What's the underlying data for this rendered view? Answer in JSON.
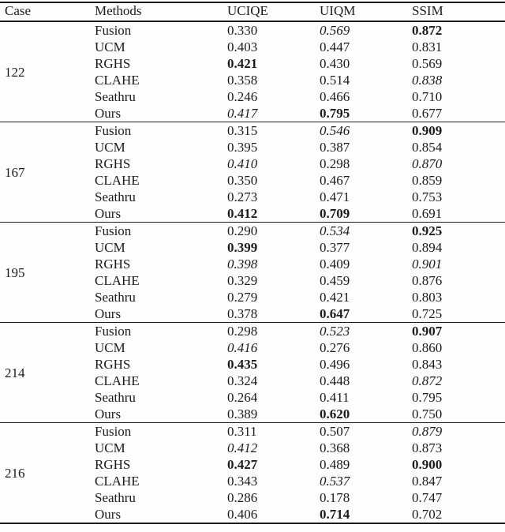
{
  "table": {
    "columns": [
      "Case",
      "Methods",
      "UCIQE",
      "UIQM",
      "SSIM"
    ],
    "groups": [
      {
        "case": "122",
        "rows": [
          {
            "method": "Fusion",
            "uciqe": {
              "v": "0.330",
              "s": "normal"
            },
            "uiqm": {
              "v": "0.569",
              "s": "italic"
            },
            "ssim": {
              "v": "0.872",
              "s": "bold"
            }
          },
          {
            "method": "UCM",
            "uciqe": {
              "v": "0.403",
              "s": "normal"
            },
            "uiqm": {
              "v": "0.447",
              "s": "normal"
            },
            "ssim": {
              "v": "0.831",
              "s": "normal"
            }
          },
          {
            "method": "RGHS",
            "uciqe": {
              "v": "0.421",
              "s": "bold"
            },
            "uiqm": {
              "v": "0.430",
              "s": "normal"
            },
            "ssim": {
              "v": "0.569",
              "s": "normal"
            }
          },
          {
            "method": "CLAHE",
            "uciqe": {
              "v": "0.358",
              "s": "normal"
            },
            "uiqm": {
              "v": "0.514",
              "s": "normal"
            },
            "ssim": {
              "v": "0.838",
              "s": "italic"
            }
          },
          {
            "method": "Seathru",
            "uciqe": {
              "v": "0.246",
              "s": "normal"
            },
            "uiqm": {
              "v": "0.466",
              "s": "normal"
            },
            "ssim": {
              "v": "0.710",
              "s": "normal"
            }
          },
          {
            "method": "Ours",
            "uciqe": {
              "v": "0.417",
              "s": "italic"
            },
            "uiqm": {
              "v": "0.795",
              "s": "bold"
            },
            "ssim": {
              "v": "0.677",
              "s": "normal"
            }
          }
        ]
      },
      {
        "case": "167",
        "rows": [
          {
            "method": "Fusion",
            "uciqe": {
              "v": "0.315",
              "s": "normal"
            },
            "uiqm": {
              "v": "0.546",
              "s": "italic"
            },
            "ssim": {
              "v": "0.909",
              "s": "bold"
            }
          },
          {
            "method": "UCM",
            "uciqe": {
              "v": "0.395",
              "s": "normal"
            },
            "uiqm": {
              "v": "0.387",
              "s": "normal"
            },
            "ssim": {
              "v": "0.854",
              "s": "normal"
            }
          },
          {
            "method": "RGHS",
            "uciqe": {
              "v": "0.410",
              "s": "italic"
            },
            "uiqm": {
              "v": "0.298",
              "s": "normal"
            },
            "ssim": {
              "v": "0.870",
              "s": "italic"
            }
          },
          {
            "method": "CLAHE",
            "uciqe": {
              "v": "0.350",
              "s": "normal"
            },
            "uiqm": {
              "v": "0.467",
              "s": "normal"
            },
            "ssim": {
              "v": "0.859",
              "s": "normal"
            }
          },
          {
            "method": "Seathru",
            "uciqe": {
              "v": "0.273",
              "s": "normal"
            },
            "uiqm": {
              "v": "0.471",
              "s": "normal"
            },
            "ssim": {
              "v": "0.753",
              "s": "normal"
            }
          },
          {
            "method": "Ours",
            "uciqe": {
              "v": "0.412",
              "s": "bold"
            },
            "uiqm": {
              "v": "0.709",
              "s": "bold"
            },
            "ssim": {
              "v": "0.691",
              "s": "normal"
            }
          }
        ]
      },
      {
        "case": "195",
        "rows": [
          {
            "method": "Fusion",
            "uciqe": {
              "v": "0.290",
              "s": "normal"
            },
            "uiqm": {
              "v": "0.534",
              "s": "italic"
            },
            "ssim": {
              "v": "0.925",
              "s": "bold"
            }
          },
          {
            "method": "UCM",
            "uciqe": {
              "v": "0.399",
              "s": "bold"
            },
            "uiqm": {
              "v": "0.377",
              "s": "normal"
            },
            "ssim": {
              "v": "0.894",
              "s": "normal"
            }
          },
          {
            "method": "RGHS",
            "uciqe": {
              "v": "0.398",
              "s": "italic"
            },
            "uiqm": {
              "v": "0.409",
              "s": "normal"
            },
            "ssim": {
              "v": "0.901",
              "s": "italic"
            }
          },
          {
            "method": "CLAHE",
            "uciqe": {
              "v": "0.329",
              "s": "normal"
            },
            "uiqm": {
              "v": "0.459",
              "s": "normal"
            },
            "ssim": {
              "v": "0.876",
              "s": "normal"
            }
          },
          {
            "method": "Seathru",
            "uciqe": {
              "v": "0.279",
              "s": "normal"
            },
            "uiqm": {
              "v": "0.421",
              "s": "normal"
            },
            "ssim": {
              "v": "0.803",
              "s": "normal"
            }
          },
          {
            "method": "Ours",
            "uciqe": {
              "v": "0.378",
              "s": "normal"
            },
            "uiqm": {
              "v": "0.647",
              "s": "bold"
            },
            "ssim": {
              "v": "0.725",
              "s": "normal"
            }
          }
        ]
      },
      {
        "case": "214",
        "rows": [
          {
            "method": "Fusion",
            "uciqe": {
              "v": "0.298",
              "s": "normal"
            },
            "uiqm": {
              "v": "0.523",
              "s": "italic"
            },
            "ssim": {
              "v": "0.907",
              "s": "bold"
            }
          },
          {
            "method": "UCM",
            "uciqe": {
              "v": "0.416",
              "s": "italic"
            },
            "uiqm": {
              "v": "0.276",
              "s": "normal"
            },
            "ssim": {
              "v": "0.860",
              "s": "normal"
            }
          },
          {
            "method": "RGHS",
            "uciqe": {
              "v": "0.435",
              "s": "bold"
            },
            "uiqm": {
              "v": "0.496",
              "s": "normal"
            },
            "ssim": {
              "v": "0.843",
              "s": "normal"
            }
          },
          {
            "method": "CLAHE",
            "uciqe": {
              "v": "0.324",
              "s": "normal"
            },
            "uiqm": {
              "v": "0.448",
              "s": "normal"
            },
            "ssim": {
              "v": "0.872",
              "s": "italic"
            }
          },
          {
            "method": "Seathru",
            "uciqe": {
              "v": "0.264",
              "s": "normal"
            },
            "uiqm": {
              "v": "0.411",
              "s": "normal"
            },
            "ssim": {
              "v": "0.795",
              "s": "normal"
            }
          },
          {
            "method": "Ours",
            "uciqe": {
              "v": "0.389",
              "s": "normal"
            },
            "uiqm": {
              "v": "0.620",
              "s": "bold"
            },
            "ssim": {
              "v": "0.750",
              "s": "normal"
            }
          }
        ]
      },
      {
        "case": "216",
        "rows": [
          {
            "method": "Fusion",
            "uciqe": {
              "v": "0.311",
              "s": "normal"
            },
            "uiqm": {
              "v": "0.507",
              "s": "normal"
            },
            "ssim": {
              "v": "0.879",
              "s": "italic"
            }
          },
          {
            "method": "UCM",
            "uciqe": {
              "v": "0.412",
              "s": "italic"
            },
            "uiqm": {
              "v": "0.368",
              "s": "normal"
            },
            "ssim": {
              "v": "0.873",
              "s": "normal"
            }
          },
          {
            "method": "RGHS",
            "uciqe": {
              "v": "0.427",
              "s": "bold"
            },
            "uiqm": {
              "v": "0.489",
              "s": "normal"
            },
            "ssim": {
              "v": "0.900",
              "s": "bold"
            }
          },
          {
            "method": "CLAHE",
            "uciqe": {
              "v": "0.343",
              "s": "normal"
            },
            "uiqm": {
              "v": "0.537",
              "s": "italic"
            },
            "ssim": {
              "v": "0.847",
              "s": "normal"
            }
          },
          {
            "method": "Seathru",
            "uciqe": {
              "v": "0.286",
              "s": "normal"
            },
            "uiqm": {
              "v": "0.178",
              "s": "normal"
            },
            "ssim": {
              "v": "0.747",
              "s": "normal"
            }
          },
          {
            "method": "Ours",
            "uciqe": {
              "v": "0.406",
              "s": "normal"
            },
            "uiqm": {
              "v": "0.714",
              "s": "bold"
            },
            "ssim": {
              "v": "0.702",
              "s": "normal"
            }
          }
        ]
      }
    ]
  }
}
